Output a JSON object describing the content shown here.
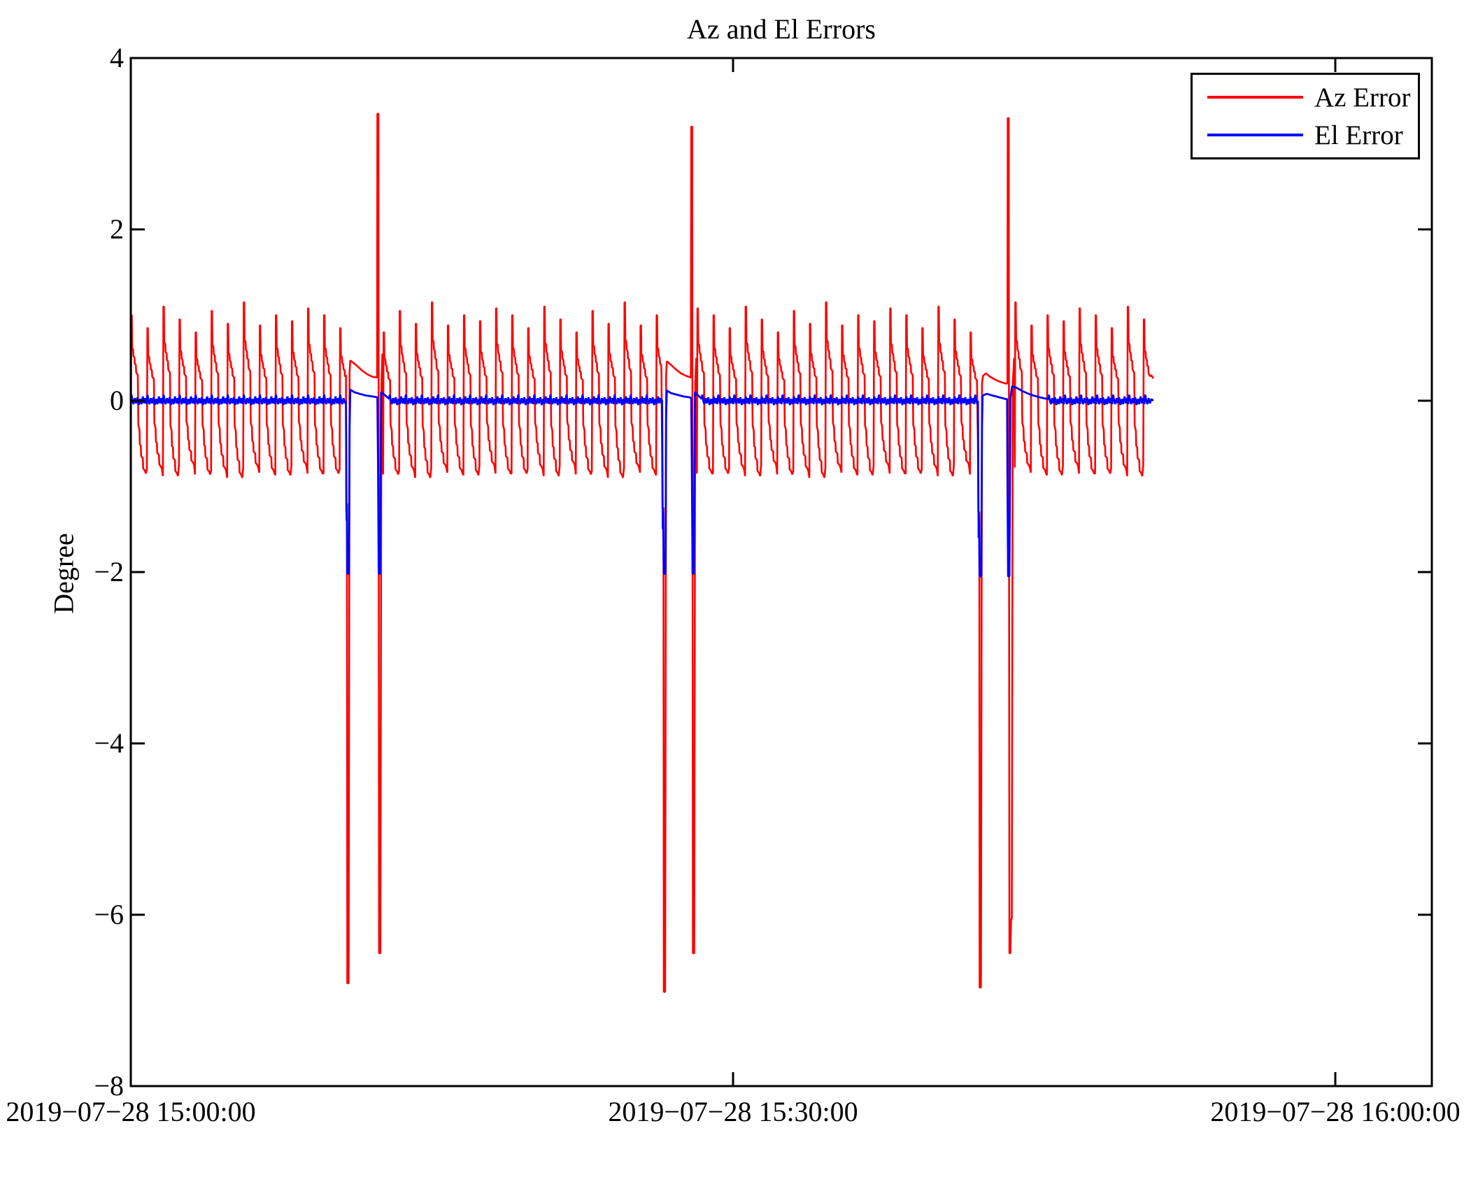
{
  "title": "Az and El Errors",
  "legend": {
    "items": [
      {
        "label": "Az Error",
        "color": "#ff0000"
      },
      {
        "label": "El Error",
        "color": "#0000ff"
      }
    ]
  },
  "axes": {
    "ylabel": "Degree",
    "ylim": [
      -8,
      4
    ],
    "ytick_values": [
      4,
      2,
      0,
      -2,
      -4,
      -6,
      -8
    ],
    "ytick_labels": [
      "4",
      "2",
      "0",
      "−2",
      "−4",
      "−6",
      "−8"
    ],
    "xtick_seconds": [
      0,
      1800,
      3600
    ],
    "xtick_labels": [
      "2019−07−28 15:00:00",
      "2019−07−28 15:30:00",
      "2019−07−28 16:00:00"
    ],
    "xlim_seconds": [
      0,
      3888
    ],
    "grid": false,
    "box": true,
    "tick_direction": "in"
  },
  "chart_data": {
    "type": "line",
    "title": "Az and El Errors",
    "xlabel": "",
    "ylabel": "Degree",
    "ylim": [
      -8,
      4
    ],
    "x_unit": "seconds after 2019-07-28 15:00:00",
    "x_range_seconds": [
      0,
      3888
    ],
    "data_end_second": 3056,
    "legend_position": "top-right",
    "series": [
      {
        "name": "Az Error",
        "color": "#ff0000",
        "linewidth": 2.6
      },
      {
        "name": "El Error",
        "color": "#0000ff",
        "linewidth": 2.8
      }
    ],
    "az_oscillation": {
      "description": "repeating sawtooth staircase of Az tracking error, approx -0.85 to +1.0 deg",
      "period_s": 48,
      "intervals_s": [
        [
          0,
          642
        ],
        [
          754,
          1586
        ],
        [
          1692,
          2530
        ],
        [
          2642,
          3048
        ]
      ],
      "cycle_shape": [
        [
          0,
          -1.0
        ],
        [
          1.5,
          1.0
        ],
        [
          3,
          1.0
        ],
        [
          4,
          0.62
        ],
        [
          7,
          0.6
        ],
        [
          8,
          0.52
        ],
        [
          11,
          0.5
        ],
        [
          12,
          0.43
        ],
        [
          15,
          0.42
        ],
        [
          16,
          0.33
        ],
        [
          21,
          0.3
        ],
        [
          22.5,
          -0.33
        ],
        [
          26,
          -0.4
        ],
        [
          27,
          -0.6
        ],
        [
          30,
          -0.62
        ],
        [
          31,
          -0.76
        ],
        [
          36,
          -0.79
        ],
        [
          37,
          -0.93
        ],
        [
          42,
          -0.96
        ],
        [
          45,
          -1.0
        ]
      ],
      "peak_values": [
        1.0,
        0.85,
        1.1,
        0.95,
        0.8,
        1.05,
        0.9,
        1.15,
        0.88,
        1.0,
        0.93,
        1.08
      ],
      "trough_values": [
        0.85,
        0.8,
        0.88,
        0.75,
        0.86,
        0.82,
        0.9,
        0.78,
        0.84,
        0.87,
        0.76,
        0.85
      ]
    },
    "el_noise": {
      "description": "El error jitter about 0 deg, +/-0.07 deg",
      "period_s": 48,
      "intervals_s": [
        [
          0,
          642
        ],
        [
          772,
          1586
        ],
        [
          1706,
          2530
        ],
        [
          2742,
          3048
        ]
      ],
      "cycle_shape": [
        [
          0,
          0.02
        ],
        [
          2,
          0.07
        ],
        [
          5,
          0.0
        ],
        [
          8,
          -0.04
        ],
        [
          12,
          0.03
        ],
        [
          16,
          -0.03
        ],
        [
          20,
          0.04
        ],
        [
          24,
          -0.05
        ],
        [
          28,
          0.02
        ],
        [
          32,
          -0.04
        ],
        [
          36,
          0.05
        ],
        [
          40,
          -0.03
        ],
        [
          44,
          0.03
        ],
        [
          47,
          -0.04
        ]
      ]
    },
    "events": [
      {
        "name": "event-1",
        "az_points": [
          [
            643,
            0.3
          ],
          [
            644,
            -1.3
          ],
          [
            646,
            -1.3
          ],
          [
            647,
            -6.8
          ],
          [
            651,
            -6.8
          ],
          [
            654,
            0.35
          ],
          [
            656,
            0.47
          ],
          [
            666,
            0.44
          ],
          [
            678,
            0.4
          ],
          [
            692,
            0.35
          ],
          [
            706,
            0.31
          ],
          [
            722,
            0.28
          ],
          [
            736,
            0.27
          ],
          [
            737,
            3.35
          ],
          [
            740,
            3.35
          ],
          [
            742,
            -6.45
          ],
          [
            746,
            -6.45
          ],
          [
            749,
            0.2
          ],
          [
            752,
            0.55
          ]
        ],
        "el_points": [
          [
            643,
            0.0
          ],
          [
            645,
            -1.4
          ],
          [
            646,
            -1.2
          ],
          [
            647,
            -2.02
          ],
          [
            652,
            -2.02
          ],
          [
            654,
            -0.3
          ],
          [
            656,
            0.13
          ],
          [
            668,
            0.1
          ],
          [
            684,
            0.08
          ],
          [
            704,
            0.06
          ],
          [
            722,
            0.05
          ],
          [
            737,
            0.04
          ],
          [
            739,
            -0.8
          ],
          [
            741,
            -2.02
          ],
          [
            745,
            -2.02
          ],
          [
            748,
            0.1
          ],
          [
            758,
            0.07
          ],
          [
            770,
            0.03
          ]
        ]
      },
      {
        "name": "event-2",
        "az_points": [
          [
            1588,
            -0.6
          ],
          [
            1589,
            -1.25
          ],
          [
            1592,
            -1.25
          ],
          [
            1593,
            -6.9
          ],
          [
            1597,
            -6.9
          ],
          [
            1600,
            0.3
          ],
          [
            1602,
            0.46
          ],
          [
            1614,
            0.42
          ],
          [
            1628,
            0.37
          ],
          [
            1644,
            0.32
          ],
          [
            1660,
            0.29
          ],
          [
            1674,
            0.27
          ],
          [
            1675,
            3.2
          ],
          [
            1678,
            3.2
          ],
          [
            1680,
            -6.45
          ],
          [
            1684,
            -6.45
          ],
          [
            1687,
            0.2
          ],
          [
            1690,
            0.5
          ]
        ],
        "el_points": [
          [
            1588,
            0.0
          ],
          [
            1590,
            -1.5
          ],
          [
            1591,
            -1.3
          ],
          [
            1593,
            -2.02
          ],
          [
            1598,
            -2.02
          ],
          [
            1600,
            -0.2
          ],
          [
            1602,
            0.12
          ],
          [
            1614,
            0.09
          ],
          [
            1632,
            0.07
          ],
          [
            1652,
            0.05
          ],
          [
            1670,
            0.04
          ],
          [
            1675,
            0.03
          ],
          [
            1677,
            -0.9
          ],
          [
            1679,
            -2.02
          ],
          [
            1683,
            -2.02
          ],
          [
            1686,
            0.1
          ],
          [
            1696,
            0.06
          ],
          [
            1704,
            0.03
          ]
        ]
      },
      {
        "name": "event-3",
        "az_points": [
          [
            2532,
            -0.5
          ],
          [
            2533,
            -1.3
          ],
          [
            2536,
            -1.3
          ],
          [
            2537,
            -6.85
          ],
          [
            2541,
            -6.85
          ],
          [
            2544,
            0.2
          ],
          [
            2547,
            0.29
          ],
          [
            2556,
            0.32
          ],
          [
            2568,
            0.28
          ],
          [
            2582,
            0.25
          ],
          [
            2598,
            0.22
          ],
          [
            2616,
            0.2
          ],
          [
            2620,
            0.2
          ],
          [
            2621,
            3.3
          ],
          [
            2624,
            3.3
          ],
          [
            2626,
            -6.45
          ],
          [
            2629,
            -6.45
          ],
          [
            2631,
            -6.05
          ],
          [
            2633,
            -6.05
          ],
          [
            2636,
            0.2
          ],
          [
            2640,
            0.5
          ]
        ],
        "el_points": [
          [
            2532,
            0.0
          ],
          [
            2534,
            -1.6
          ],
          [
            2535,
            -1.35
          ],
          [
            2537,
            -2.05
          ],
          [
            2542,
            -2.05
          ],
          [
            2544,
            -0.3
          ],
          [
            2546,
            0.06
          ],
          [
            2558,
            0.08
          ],
          [
            2576,
            0.06
          ],
          [
            2596,
            0.04
          ],
          [
            2614,
            0.02
          ],
          [
            2619,
            0.02
          ],
          [
            2620,
            -0.8
          ],
          [
            2622,
            -2.05
          ],
          [
            2626,
            -2.05
          ],
          [
            2629,
            0.03
          ],
          [
            2634,
            0.17
          ],
          [
            2648,
            0.15
          ],
          [
            2666,
            0.11
          ],
          [
            2690,
            0.07
          ],
          [
            2716,
            0.04
          ],
          [
            2740,
            0.02
          ]
        ]
      }
    ],
    "az_tail_points": [
      [
        3050,
        0.3
      ],
      [
        3056,
        0.26
      ]
    ],
    "el_tail_points": [
      [
        3050,
        0.02
      ],
      [
        3056,
        0.0
      ]
    ]
  }
}
